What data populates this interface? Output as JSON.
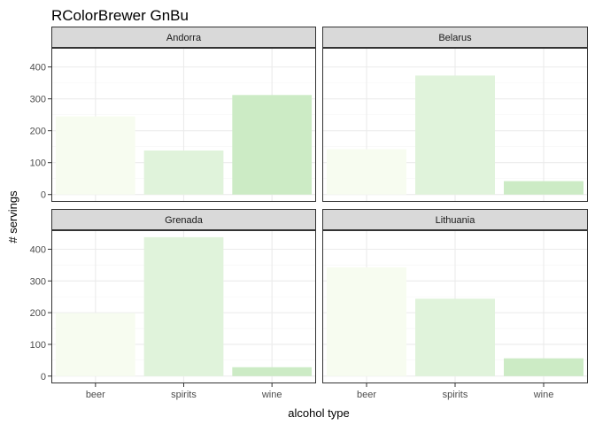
{
  "chart_data": {
    "type": "bar",
    "title": "RColorBrewer GnBu",
    "xlabel": "alcohol type",
    "ylabel": "# servings",
    "categories": [
      "beer",
      "spirits",
      "wine"
    ],
    "yticks": [
      0,
      100,
      200,
      300,
      400
    ],
    "ylim": [
      -23,
      460
    ],
    "grid": true,
    "facet_layout": "2x2",
    "colors": {
      "beer": "#f7fcf0",
      "spirits": "#e0f3db",
      "wine": "#ccebc5",
      "strip_bg": "#d9d9d9",
      "grid_major": "#ebebeb",
      "grid_minor": "#f5f5f5",
      "panel_border": "#333333"
    },
    "panels": [
      {
        "label": "Andorra",
        "values": [
          245,
          138,
          312
        ]
      },
      {
        "label": "Belarus",
        "values": [
          142,
          373,
          42
        ]
      },
      {
        "label": "Grenada",
        "values": [
          199,
          438,
          28
        ]
      },
      {
        "label": "Lithuania",
        "values": [
          343,
          244,
          56
        ]
      }
    ]
  }
}
